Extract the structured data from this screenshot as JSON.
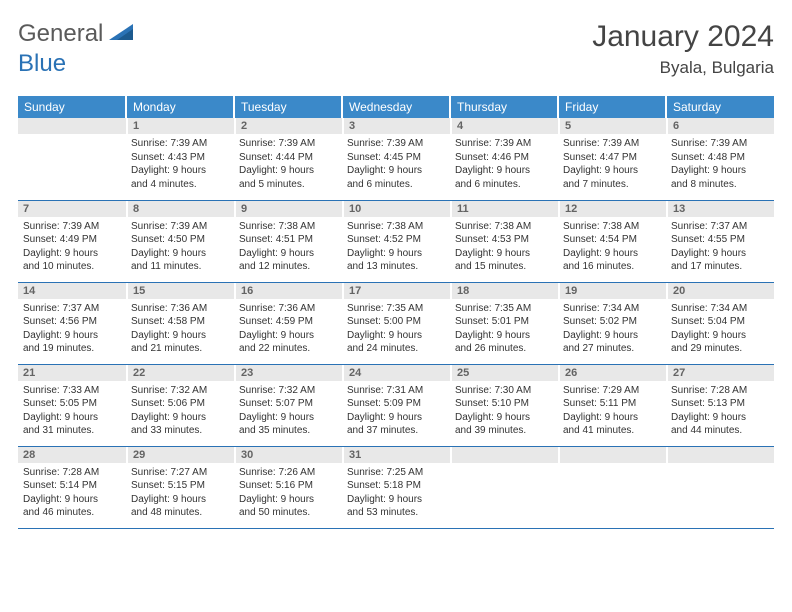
{
  "logo": {
    "part1": "General",
    "part2": "Blue"
  },
  "title": "January 2024",
  "location": "Byala, Bulgaria",
  "colors": {
    "header_bg": "#3b89c9",
    "border": "#2a72b5",
    "day_num_bg": "#e8e8e8",
    "text": "#333333"
  },
  "weekdays": [
    "Sunday",
    "Monday",
    "Tuesday",
    "Wednesday",
    "Thursday",
    "Friday",
    "Saturday"
  ],
  "weeks": [
    [
      {
        "n": "",
        "lines": []
      },
      {
        "n": "1",
        "lines": [
          "Sunrise: 7:39 AM",
          "Sunset: 4:43 PM",
          "Daylight: 9 hours",
          "and 4 minutes."
        ]
      },
      {
        "n": "2",
        "lines": [
          "Sunrise: 7:39 AM",
          "Sunset: 4:44 PM",
          "Daylight: 9 hours",
          "and 5 minutes."
        ]
      },
      {
        "n": "3",
        "lines": [
          "Sunrise: 7:39 AM",
          "Sunset: 4:45 PM",
          "Daylight: 9 hours",
          "and 6 minutes."
        ]
      },
      {
        "n": "4",
        "lines": [
          "Sunrise: 7:39 AM",
          "Sunset: 4:46 PM",
          "Daylight: 9 hours",
          "and 6 minutes."
        ]
      },
      {
        "n": "5",
        "lines": [
          "Sunrise: 7:39 AM",
          "Sunset: 4:47 PM",
          "Daylight: 9 hours",
          "and 7 minutes."
        ]
      },
      {
        "n": "6",
        "lines": [
          "Sunrise: 7:39 AM",
          "Sunset: 4:48 PM",
          "Daylight: 9 hours",
          "and 8 minutes."
        ]
      }
    ],
    [
      {
        "n": "7",
        "lines": [
          "Sunrise: 7:39 AM",
          "Sunset: 4:49 PM",
          "Daylight: 9 hours",
          "and 10 minutes."
        ]
      },
      {
        "n": "8",
        "lines": [
          "Sunrise: 7:39 AM",
          "Sunset: 4:50 PM",
          "Daylight: 9 hours",
          "and 11 minutes."
        ]
      },
      {
        "n": "9",
        "lines": [
          "Sunrise: 7:38 AM",
          "Sunset: 4:51 PM",
          "Daylight: 9 hours",
          "and 12 minutes."
        ]
      },
      {
        "n": "10",
        "lines": [
          "Sunrise: 7:38 AM",
          "Sunset: 4:52 PM",
          "Daylight: 9 hours",
          "and 13 minutes."
        ]
      },
      {
        "n": "11",
        "lines": [
          "Sunrise: 7:38 AM",
          "Sunset: 4:53 PM",
          "Daylight: 9 hours",
          "and 15 minutes."
        ]
      },
      {
        "n": "12",
        "lines": [
          "Sunrise: 7:38 AM",
          "Sunset: 4:54 PM",
          "Daylight: 9 hours",
          "and 16 minutes."
        ]
      },
      {
        "n": "13",
        "lines": [
          "Sunrise: 7:37 AM",
          "Sunset: 4:55 PM",
          "Daylight: 9 hours",
          "and 17 minutes."
        ]
      }
    ],
    [
      {
        "n": "14",
        "lines": [
          "Sunrise: 7:37 AM",
          "Sunset: 4:56 PM",
          "Daylight: 9 hours",
          "and 19 minutes."
        ]
      },
      {
        "n": "15",
        "lines": [
          "Sunrise: 7:36 AM",
          "Sunset: 4:58 PM",
          "Daylight: 9 hours",
          "and 21 minutes."
        ]
      },
      {
        "n": "16",
        "lines": [
          "Sunrise: 7:36 AM",
          "Sunset: 4:59 PM",
          "Daylight: 9 hours",
          "and 22 minutes."
        ]
      },
      {
        "n": "17",
        "lines": [
          "Sunrise: 7:35 AM",
          "Sunset: 5:00 PM",
          "Daylight: 9 hours",
          "and 24 minutes."
        ]
      },
      {
        "n": "18",
        "lines": [
          "Sunrise: 7:35 AM",
          "Sunset: 5:01 PM",
          "Daylight: 9 hours",
          "and 26 minutes."
        ]
      },
      {
        "n": "19",
        "lines": [
          "Sunrise: 7:34 AM",
          "Sunset: 5:02 PM",
          "Daylight: 9 hours",
          "and 27 minutes."
        ]
      },
      {
        "n": "20",
        "lines": [
          "Sunrise: 7:34 AM",
          "Sunset: 5:04 PM",
          "Daylight: 9 hours",
          "and 29 minutes."
        ]
      }
    ],
    [
      {
        "n": "21",
        "lines": [
          "Sunrise: 7:33 AM",
          "Sunset: 5:05 PM",
          "Daylight: 9 hours",
          "and 31 minutes."
        ]
      },
      {
        "n": "22",
        "lines": [
          "Sunrise: 7:32 AM",
          "Sunset: 5:06 PM",
          "Daylight: 9 hours",
          "and 33 minutes."
        ]
      },
      {
        "n": "23",
        "lines": [
          "Sunrise: 7:32 AM",
          "Sunset: 5:07 PM",
          "Daylight: 9 hours",
          "and 35 minutes."
        ]
      },
      {
        "n": "24",
        "lines": [
          "Sunrise: 7:31 AM",
          "Sunset: 5:09 PM",
          "Daylight: 9 hours",
          "and 37 minutes."
        ]
      },
      {
        "n": "25",
        "lines": [
          "Sunrise: 7:30 AM",
          "Sunset: 5:10 PM",
          "Daylight: 9 hours",
          "and 39 minutes."
        ]
      },
      {
        "n": "26",
        "lines": [
          "Sunrise: 7:29 AM",
          "Sunset: 5:11 PM",
          "Daylight: 9 hours",
          "and 41 minutes."
        ]
      },
      {
        "n": "27",
        "lines": [
          "Sunrise: 7:28 AM",
          "Sunset: 5:13 PM",
          "Daylight: 9 hours",
          "and 44 minutes."
        ]
      }
    ],
    [
      {
        "n": "28",
        "lines": [
          "Sunrise: 7:28 AM",
          "Sunset: 5:14 PM",
          "Daylight: 9 hours",
          "and 46 minutes."
        ]
      },
      {
        "n": "29",
        "lines": [
          "Sunrise: 7:27 AM",
          "Sunset: 5:15 PM",
          "Daylight: 9 hours",
          "and 48 minutes."
        ]
      },
      {
        "n": "30",
        "lines": [
          "Sunrise: 7:26 AM",
          "Sunset: 5:16 PM",
          "Daylight: 9 hours",
          "and 50 minutes."
        ]
      },
      {
        "n": "31",
        "lines": [
          "Sunrise: 7:25 AM",
          "Sunset: 5:18 PM",
          "Daylight: 9 hours",
          "and 53 minutes."
        ]
      },
      {
        "n": "",
        "lines": []
      },
      {
        "n": "",
        "lines": []
      },
      {
        "n": "",
        "lines": []
      }
    ]
  ]
}
